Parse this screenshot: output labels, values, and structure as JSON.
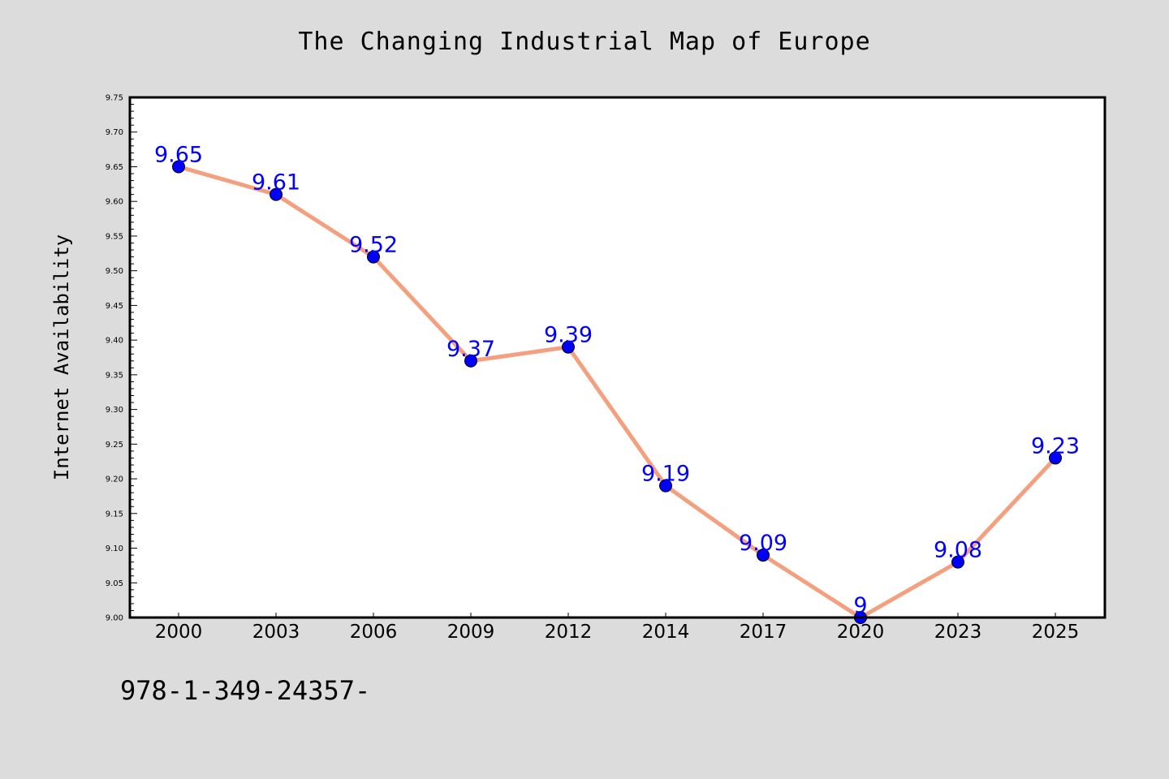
{
  "chart_data": {
    "type": "line",
    "title": "The Changing Industrial Map of Europe",
    "xlabel": "",
    "ylabel": "Internet Availability",
    "categories": [
      "2000",
      "2003",
      "2006",
      "2009",
      "2012",
      "2014",
      "2017",
      "2020",
      "2023",
      "2025"
    ],
    "series": [
      {
        "values": [
          9.65,
          9.61,
          9.52,
          9.37,
          9.39,
          9.19,
          9.09,
          9,
          9.08,
          9.23
        ],
        "line_color": "#f4a07e",
        "marker_color": "#0000ff",
        "label_color": "#0000ff"
      }
    ],
    "data_labels": [
      "9.65",
      "9.61",
      "9.52",
      "9.37",
      "9.39",
      "9.19",
      "9.09",
      "9",
      "9.08",
      "9.23"
    ],
    "ylim": [
      9.0,
      9.75
    ],
    "y_ticks": [
      "9.00",
      "9.05",
      "9.10",
      "9.15",
      "9.20",
      "9.25",
      "9.30",
      "9.35",
      "9.40",
      "9.45",
      "9.50",
      "9.55",
      "9.60",
      "9.65",
      "9.70",
      "9.75"
    ],
    "grid": false,
    "legend": "none"
  },
  "footer": {
    "text": "978-1-349-24357-"
  }
}
